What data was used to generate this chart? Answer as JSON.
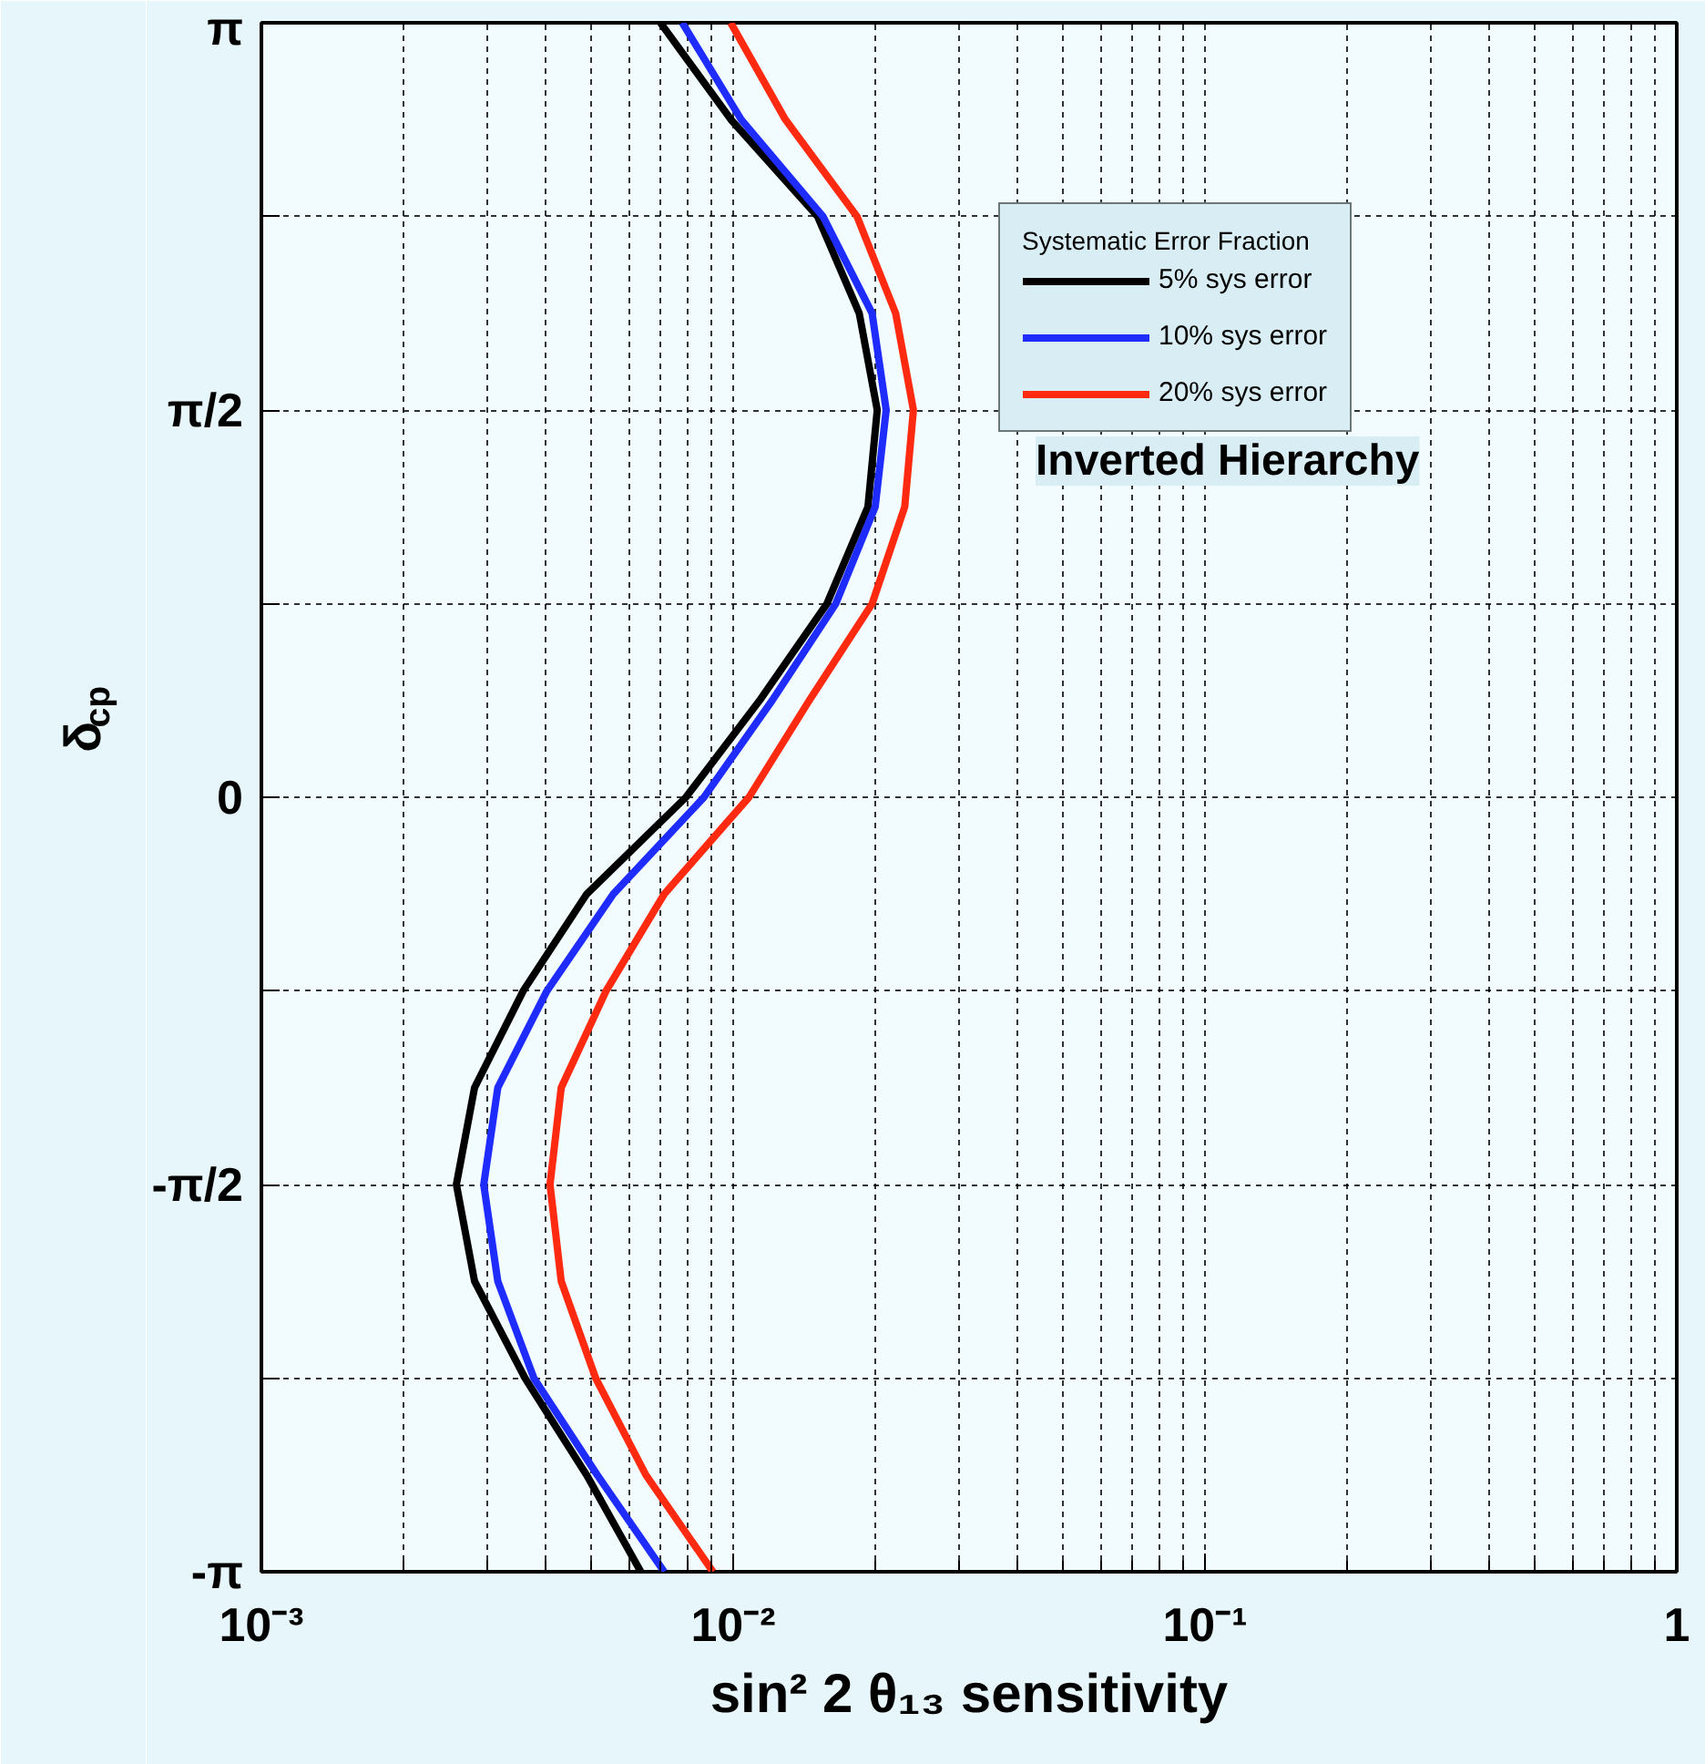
{
  "chart_data": {
    "type": "line",
    "xlabel": "sin² 2 θ₁₃ sensitivity",
    "ylabel": "δ$_{cp}$",
    "legend_title": "Systematic Error Fraction",
    "annotations": [
      "Inverted Hierarchy"
    ],
    "log": "x",
    "grid": true,
    "legend": "top right",
    "line_style": "solid",
    "marker": "none",
    "xlim": [
      0.001,
      1
    ],
    "xticks": [
      {
        "value": 0.001,
        "label": "10⁻³"
      },
      {
        "value": 0.01,
        "label": "10⁻²"
      },
      {
        "value": 0.1,
        "label": "10⁻¹"
      },
      1
    ],
    "ylim": [
      -3.1416,
      3.1416
    ],
    "yticks": [
      {
        "value": -3.1416,
        "label": "-π"
      },
      {
        "value": -2.3562,
        "label": null
      },
      {
        "value": -1.5708,
        "label": "-π/2"
      },
      {
        "value": -0.7854,
        "label": null
      },
      0,
      {
        "value": 0.7854,
        "label": null
      },
      {
        "value": 1.5708,
        "label": "π/2"
      },
      {
        "value": 2.3562,
        "label": null
      },
      {
        "value": 3.1416,
        "label": "π"
      }
    ],
    "series": [
      {
        "name": "5% sys error",
        "color": "#000000",
        "x": [
          0.00701,
          0.00989,
          0.0151,
          0.0185,
          0.0202,
          0.0193,
          0.0158,
          0.01138,
          0.00794,
          0.00489,
          0.00359,
          0.00283,
          0.00259,
          0.00283,
          0.00362,
          0.00489,
          0.00637
        ],
        "values": [
          3.1416,
          2.749,
          2.356,
          1.963,
          1.571,
          1.178,
          0.785,
          0.393,
          0,
          -0.393,
          -0.785,
          -1.178,
          -1.571,
          -1.963,
          -2.356,
          -2.749,
          -3.1416
        ]
      },
      {
        "name": "10% sys error",
        "color": "#1f2cff",
        "x": [
          0.0078,
          0.0104,
          0.0155,
          0.0197,
          0.0211,
          0.02,
          0.0165,
          0.0121,
          0.00867,
          0.00557,
          0.00403,
          0.00317,
          0.00296,
          0.00317,
          0.00378,
          0.00515,
          0.00714
        ],
        "values": [
          3.1416,
          2.749,
          2.356,
          1.963,
          1.571,
          1.178,
          0.785,
          0.393,
          0,
          -0.393,
          -0.785,
          -1.178,
          -1.571,
          -1.963,
          -2.356,
          -2.749,
          -3.1416
        ]
      },
      {
        "name": "20% sys error",
        "color": "#ff2a10",
        "x": [
          0.00988,
          0.0129,
          0.0183,
          0.0221,
          0.0241,
          0.0231,
          0.0197,
          0.0145,
          0.0108,
          0.00714,
          0.00538,
          0.00432,
          0.00409,
          0.00432,
          0.00511,
          0.00653,
          0.00906
        ],
        "values": [
          3.1416,
          2.749,
          2.356,
          1.963,
          1.571,
          1.178,
          0.785,
          0.393,
          0,
          -0.393,
          -0.785,
          -1.178,
          -1.571,
          -1.963,
          -2.356,
          -2.749,
          -3.1416
        ]
      }
    ]
  }
}
